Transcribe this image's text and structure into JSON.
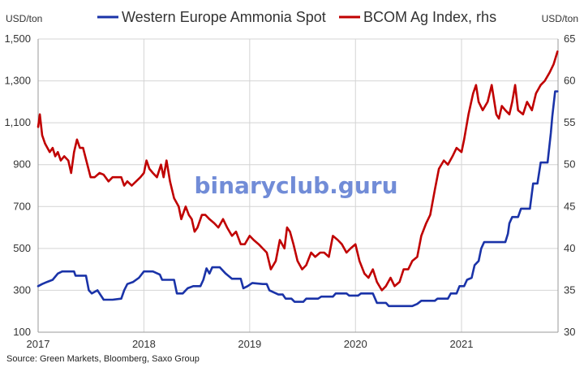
{
  "chart_data": {
    "type": "line",
    "legend_position": "top",
    "grid": true,
    "watermark": "binaryclub.guru",
    "source": "Source: Green Markets, Bloomberg, Saxo Group",
    "left_unit": "USD/ton",
    "right_unit": "USD/ton",
    "x_range": [
      "2017-01-01",
      "2021-11-30"
    ],
    "x_ticks": [
      "2017",
      "2018",
      "2019",
      "2020",
      "2021"
    ],
    "y_left": {
      "range": [
        100,
        1500
      ],
      "ticks": [
        "100",
        "300",
        "500",
        "700",
        "900",
        "1,100",
        "1,300",
        "1,500"
      ]
    },
    "y_right": {
      "range": [
        30,
        65
      ],
      "ticks": [
        "30",
        "35",
        "40",
        "45",
        "50",
        "55",
        "60",
        "65"
      ]
    },
    "series": [
      {
        "name": "Western Europe Ammonia Spot",
        "axis": "left",
        "color": "#1a33a8",
        "points": [
          [
            "2017-01-01",
            320
          ],
          [
            "2017-01-15",
            330
          ],
          [
            "2017-02-01",
            340
          ],
          [
            "2017-02-20",
            350
          ],
          [
            "2017-03-10",
            380
          ],
          [
            "2017-03-25",
            390
          ],
          [
            "2017-05-05",
            390
          ],
          [
            "2017-05-10",
            370
          ],
          [
            "2017-06-15",
            370
          ],
          [
            "2017-06-25",
            300
          ],
          [
            "2017-07-05",
            285
          ],
          [
            "2017-07-25",
            300
          ],
          [
            "2017-08-15",
            255
          ],
          [
            "2017-09-15",
            255
          ],
          [
            "2017-10-15",
            260
          ],
          [
            "2017-10-25",
            300
          ],
          [
            "2017-11-05",
            330
          ],
          [
            "2017-11-25",
            340
          ],
          [
            "2017-12-15",
            360
          ],
          [
            "2018-01-01",
            390
          ],
          [
            "2018-02-01",
            390
          ],
          [
            "2018-02-25",
            375
          ],
          [
            "2018-03-05",
            350
          ],
          [
            "2018-04-15",
            350
          ],
          [
            "2018-04-25",
            285
          ],
          [
            "2018-05-15",
            285
          ],
          [
            "2018-06-01",
            310
          ],
          [
            "2018-06-20",
            320
          ],
          [
            "2018-07-15",
            320
          ],
          [
            "2018-07-25",
            350
          ],
          [
            "2018-08-05",
            405
          ],
          [
            "2018-08-15",
            380
          ],
          [
            "2018-08-25",
            410
          ],
          [
            "2018-09-20",
            410
          ],
          [
            "2018-10-10",
            380
          ],
          [
            "2018-11-01",
            355
          ],
          [
            "2018-12-01",
            355
          ],
          [
            "2018-12-10",
            310
          ],
          [
            "2018-12-25",
            320
          ],
          [
            "2019-01-10",
            335
          ],
          [
            "2019-02-15",
            330
          ],
          [
            "2019-03-01",
            330
          ],
          [
            "2019-03-10",
            300
          ],
          [
            "2019-04-10",
            280
          ],
          [
            "2019-04-25",
            280
          ],
          [
            "2019-05-05",
            260
          ],
          [
            "2019-05-25",
            260
          ],
          [
            "2019-06-05",
            245
          ],
          [
            "2019-07-05",
            245
          ],
          [
            "2019-07-15",
            260
          ],
          [
            "2019-08-25",
            260
          ],
          [
            "2019-09-05",
            270
          ],
          [
            "2019-10-15",
            270
          ],
          [
            "2019-10-25",
            285
          ],
          [
            "2019-12-01",
            285
          ],
          [
            "2019-12-10",
            275
          ],
          [
            "2020-01-10",
            275
          ],
          [
            "2020-01-20",
            285
          ],
          [
            "2020-03-01",
            285
          ],
          [
            "2020-03-15",
            240
          ],
          [
            "2020-04-15",
            240
          ],
          [
            "2020-04-25",
            225
          ],
          [
            "2020-07-15",
            225
          ],
          [
            "2020-08-01",
            235
          ],
          [
            "2020-08-15",
            250
          ],
          [
            "2020-10-01",
            250
          ],
          [
            "2020-10-10",
            260
          ],
          [
            "2020-11-15",
            260
          ],
          [
            "2020-11-25",
            285
          ],
          [
            "2020-12-15",
            285
          ],
          [
            "2020-12-25",
            320
          ],
          [
            "2021-01-10",
            320
          ],
          [
            "2021-01-20",
            350
          ],
          [
            "2021-02-05",
            360
          ],
          [
            "2021-02-15",
            420
          ],
          [
            "2021-03-01",
            440
          ],
          [
            "2021-03-10",
            500
          ],
          [
            "2021-03-20",
            530
          ],
          [
            "2021-06-01",
            530
          ],
          [
            "2021-06-10",
            570
          ],
          [
            "2021-06-15",
            620
          ],
          [
            "2021-06-25",
            650
          ],
          [
            "2021-07-15",
            650
          ],
          [
            "2021-07-25",
            690
          ],
          [
            "2021-08-25",
            690
          ],
          [
            "2021-09-05",
            810
          ],
          [
            "2021-09-20",
            810
          ],
          [
            "2021-10-01",
            910
          ],
          [
            "2021-10-25",
            910
          ],
          [
            "2021-11-05",
            1050
          ],
          [
            "2021-11-10",
            1130
          ],
          [
            "2021-11-20",
            1250
          ],
          [
            "2021-11-28",
            1250
          ]
        ]
      },
      {
        "name": "BCOM Ag Index, rhs",
        "axis": "right",
        "color": "#c00000",
        "points": [
          [
            "2017-01-01",
            54.5
          ],
          [
            "2017-01-07",
            56.0
          ],
          [
            "2017-01-15",
            53.5
          ],
          [
            "2017-01-25",
            52.5
          ],
          [
            "2017-02-10",
            51.5
          ],
          [
            "2017-02-20",
            52.0
          ],
          [
            "2017-03-01",
            51.0
          ],
          [
            "2017-03-10",
            51.5
          ],
          [
            "2017-03-20",
            50.5
          ],
          [
            "2017-04-01",
            51.0
          ],
          [
            "2017-04-15",
            50.5
          ],
          [
            "2017-04-25",
            49.0
          ],
          [
            "2017-05-05",
            51.5
          ],
          [
            "2017-05-15",
            53.0
          ],
          [
            "2017-05-25",
            52.0
          ],
          [
            "2017-06-05",
            52.0
          ],
          [
            "2017-06-20",
            50.0
          ],
          [
            "2017-07-01",
            48.5
          ],
          [
            "2017-07-15",
            48.5
          ],
          [
            "2017-08-01",
            49.0
          ],
          [
            "2017-08-15",
            48.8
          ],
          [
            "2017-09-01",
            48.0
          ],
          [
            "2017-09-15",
            48.5
          ],
          [
            "2017-10-01",
            48.5
          ],
          [
            "2017-10-15",
            48.5
          ],
          [
            "2017-10-25",
            47.5
          ],
          [
            "2017-11-05",
            48.0
          ],
          [
            "2017-11-20",
            47.5
          ],
          [
            "2017-12-05",
            48.0
          ],
          [
            "2017-12-20",
            48.5
          ],
          [
            "2018-01-01",
            49.0
          ],
          [
            "2018-01-10",
            50.5
          ],
          [
            "2018-01-20",
            49.5
          ],
          [
            "2018-02-01",
            49.0
          ],
          [
            "2018-02-15",
            48.5
          ],
          [
            "2018-03-01",
            50.0
          ],
          [
            "2018-03-10",
            48.5
          ],
          [
            "2018-03-20",
            50.5
          ],
          [
            "2018-04-01",
            48.0
          ],
          [
            "2018-04-15",
            46.0
          ],
          [
            "2018-05-01",
            45.0
          ],
          [
            "2018-05-10",
            43.5
          ],
          [
            "2018-05-25",
            45.0
          ],
          [
            "2018-06-05",
            44.0
          ],
          [
            "2018-06-15",
            43.5
          ],
          [
            "2018-06-25",
            42.0
          ],
          [
            "2018-07-05",
            42.5
          ],
          [
            "2018-07-20",
            44.0
          ],
          [
            "2018-08-01",
            44.0
          ],
          [
            "2018-08-15",
            43.5
          ],
          [
            "2018-09-01",
            43.0
          ],
          [
            "2018-09-15",
            42.5
          ],
          [
            "2018-10-01",
            43.5
          ],
          [
            "2018-10-15",
            42.5
          ],
          [
            "2018-11-01",
            41.5
          ],
          [
            "2018-11-15",
            42.0
          ],
          [
            "2018-12-01",
            40.5
          ],
          [
            "2018-12-15",
            40.5
          ],
          [
            "2019-01-01",
            41.5
          ],
          [
            "2019-01-15",
            41.0
          ],
          [
            "2019-02-01",
            40.5
          ],
          [
            "2019-02-15",
            40.0
          ],
          [
            "2019-03-01",
            39.5
          ],
          [
            "2019-03-15",
            37.5
          ],
          [
            "2019-04-01",
            38.5
          ],
          [
            "2019-04-15",
            41.0
          ],
          [
            "2019-05-01",
            40.0
          ],
          [
            "2019-05-10",
            42.5
          ],
          [
            "2019-05-20",
            42.0
          ],
          [
            "2019-06-01",
            40.5
          ],
          [
            "2019-06-15",
            38.5
          ],
          [
            "2019-07-01",
            37.5
          ],
          [
            "2019-07-15",
            38.0
          ],
          [
            "2019-08-01",
            39.5
          ],
          [
            "2019-08-15",
            39.0
          ],
          [
            "2019-09-01",
            39.5
          ],
          [
            "2019-09-15",
            39.5
          ],
          [
            "2019-10-01",
            39.0
          ],
          [
            "2019-10-15",
            41.5
          ],
          [
            "2019-11-01",
            41.0
          ],
          [
            "2019-11-15",
            40.5
          ],
          [
            "2019-12-01",
            39.5
          ],
          [
            "2019-12-15",
            40.0
          ],
          [
            "2020-01-01",
            40.5
          ],
          [
            "2020-01-15",
            38.5
          ],
          [
            "2020-02-01",
            37.0
          ],
          [
            "2020-02-15",
            36.5
          ],
          [
            "2020-03-01",
            37.5
          ],
          [
            "2020-03-15",
            36.0
          ],
          [
            "2020-04-01",
            35.0
          ],
          [
            "2020-04-15",
            35.5
          ],
          [
            "2020-05-01",
            36.5
          ],
          [
            "2020-05-15",
            35.5
          ],
          [
            "2020-06-01",
            36.0
          ],
          [
            "2020-06-15",
            37.5
          ],
          [
            "2020-07-01",
            37.5
          ],
          [
            "2020-07-15",
            38.5
          ],
          [
            "2020-08-01",
            39.0
          ],
          [
            "2020-08-15",
            41.5
          ],
          [
            "2020-09-01",
            43.0
          ],
          [
            "2020-09-15",
            44.0
          ],
          [
            "2020-10-01",
            47.0
          ],
          [
            "2020-10-15",
            49.5
          ],
          [
            "2020-11-01",
            50.5
          ],
          [
            "2020-11-15",
            50.0
          ],
          [
            "2020-12-01",
            51.0
          ],
          [
            "2020-12-15",
            52.0
          ],
          [
            "2021-01-01",
            51.5
          ],
          [
            "2021-01-10",
            53.0
          ],
          [
            "2021-01-25",
            56.0
          ],
          [
            "2021-02-10",
            58.5
          ],
          [
            "2021-02-20",
            59.5
          ],
          [
            "2021-03-01",
            57.5
          ],
          [
            "2021-03-15",
            56.5
          ],
          [
            "2021-04-01",
            57.5
          ],
          [
            "2021-04-15",
            59.5
          ],
          [
            "2021-05-01",
            56.0
          ],
          [
            "2021-05-10",
            55.5
          ],
          [
            "2021-05-20",
            57.0
          ],
          [
            "2021-06-01",
            56.5
          ],
          [
            "2021-06-15",
            56.0
          ],
          [
            "2021-06-25",
            57.5
          ],
          [
            "2021-07-05",
            59.5
          ],
          [
            "2021-07-15",
            56.5
          ],
          [
            "2021-08-01",
            56.0
          ],
          [
            "2021-08-15",
            57.5
          ],
          [
            "2021-09-01",
            56.5
          ],
          [
            "2021-09-15",
            58.5
          ],
          [
            "2021-10-01",
            59.5
          ],
          [
            "2021-10-15",
            60.0
          ],
          [
            "2021-11-01",
            61.0
          ],
          [
            "2021-11-15",
            62.0
          ],
          [
            "2021-11-28",
            63.5
          ]
        ]
      }
    ]
  }
}
